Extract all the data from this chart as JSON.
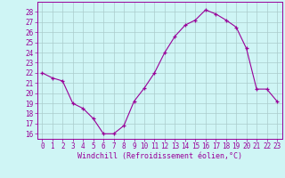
{
  "x": [
    0,
    1,
    2,
    3,
    4,
    5,
    6,
    7,
    8,
    9,
    10,
    11,
    12,
    13,
    14,
    15,
    16,
    17,
    18,
    19,
    20,
    21,
    22,
    23
  ],
  "y": [
    22.0,
    21.5,
    21.2,
    19.0,
    18.5,
    17.5,
    16.0,
    16.0,
    16.8,
    19.2,
    20.5,
    22.0,
    24.0,
    25.6,
    26.7,
    27.2,
    28.2,
    27.8,
    27.2,
    26.5,
    24.4,
    20.4,
    20.4,
    19.2
  ],
  "line_color": "#990099",
  "marker": "+",
  "xlabel": "Windchill (Refroidissement éolien,°C)",
  "bg_color": "#cff5f5",
  "grid_color": "#aacccc",
  "ylim": [
    15.5,
    29.0
  ],
  "xlim": [
    -0.5,
    23.5
  ],
  "yticks": [
    16,
    17,
    18,
    19,
    20,
    21,
    22,
    23,
    24,
    25,
    26,
    27,
    28
  ],
  "xtick_labels": [
    "0",
    "1",
    "2",
    "3",
    "4",
    "5",
    "6",
    "7",
    "8",
    "9",
    "10",
    "11",
    "12",
    "13",
    "14",
    "15",
    "16",
    "17",
    "18",
    "19",
    "20",
    "21",
    "22",
    "23"
  ],
  "tick_color": "#990099",
  "label_color": "#990099",
  "xlabel_fontsize": 6.0,
  "tick_fontsize": 5.5,
  "linewidth": 0.8,
  "markersize": 2.5
}
